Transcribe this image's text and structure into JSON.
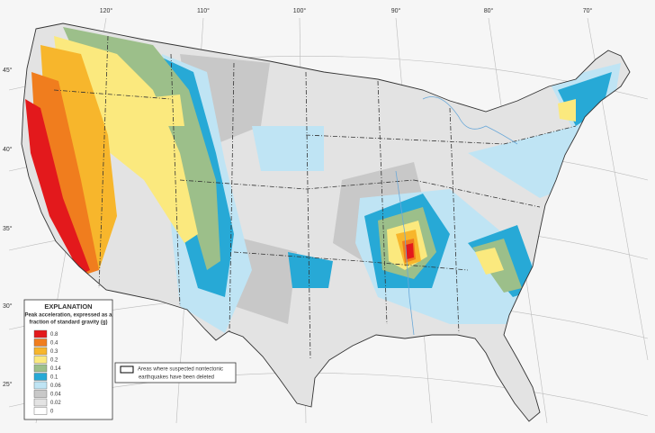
{
  "longitude_labels": [
    "120°",
    "110°",
    "100°",
    "90°",
    "80°",
    "70°"
  ],
  "latitude_labels": [
    "45°",
    "40°",
    "35°",
    "30°",
    "25°"
  ],
  "legend": {
    "title": "EXPLANATION",
    "subtitle": [
      "Peak acceleration, expressed as a",
      "fraction of standard gravity (g)"
    ],
    "items": [
      {
        "label": "0.8",
        "color": "#e3191c"
      },
      {
        "label": "0.4",
        "color": "#f07d1e"
      },
      {
        "label": "0.3",
        "color": "#f7b62c"
      },
      {
        "label": "0.2",
        "color": "#fbe97e"
      },
      {
        "label": "0.14",
        "color": "#9cbf8a"
      },
      {
        "label": "0.1",
        "color": "#27a9d6"
      },
      {
        "label": "0.06",
        "color": "#bfe4f4"
      },
      {
        "label": "0.04",
        "color": "#c8c8c8"
      },
      {
        "label": "0.02",
        "color": "#e3e3e3"
      },
      {
        "label": "0",
        "color": "#ffffff"
      }
    ]
  },
  "note": [
    "Areas where suspected nontectonic",
    "earthquakes have been deleted"
  ]
}
